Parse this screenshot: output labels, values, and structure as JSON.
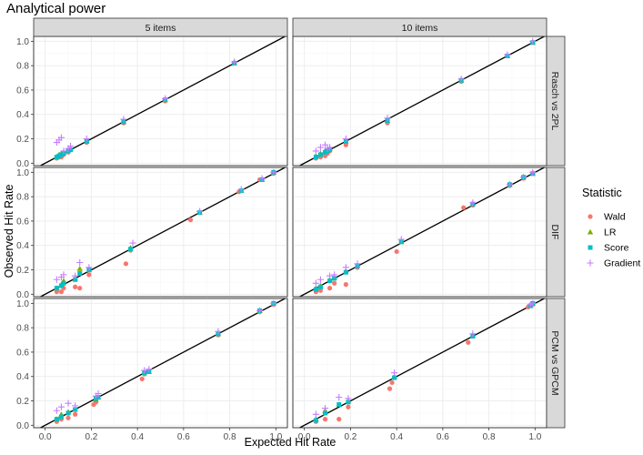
{
  "chart_data": {
    "type": "scatter",
    "title": "Analytical power",
    "xlabel": "Expected Hit Rate",
    "ylabel": "Observed Hit Rate",
    "xlim": [
      -0.05,
      1.05
    ],
    "ylim": [
      -0.02,
      1.04
    ],
    "x_ticks": [
      "0.0",
      "0.2",
      "0.4",
      "0.6",
      "0.8",
      "1.0"
    ],
    "y_ticks": [
      "0.0",
      "0.2",
      "0.4",
      "0.6",
      "0.8",
      "1.0"
    ],
    "grid": true,
    "reference_line": "y = x",
    "legend": {
      "title": "Statistic",
      "position": "right"
    },
    "columns": [
      "5 items",
      "10 items"
    ],
    "rows": [
      "Rasch vs 2PL",
      "DIF",
      "PCM vs GPCM"
    ],
    "series_styles": [
      {
        "name": "Wald",
        "color": "#F8766D",
        "shape": "circle"
      },
      {
        "name": "LR",
        "color": "#7CAE00",
        "shape": "triangle"
      },
      {
        "name": "Score",
        "color": "#00BFC4",
        "shape": "square"
      },
      {
        "name": "Gradient",
        "color": "#C77CFF",
        "shape": "plus"
      }
    ],
    "panels": [
      {
        "col": "5 items",
        "row": "Rasch vs 2PL",
        "series": [
          {
            "name": "Wald",
            "x": [
              0.05,
              0.06,
              0.07,
              0.08,
              0.1,
              0.11,
              0.18,
              0.34,
              0.52,
              0.82
            ],
            "y": [
              0.04,
              0.05,
              0.05,
              0.07,
              0.09,
              0.11,
              0.17,
              0.33,
              0.51,
              0.82
            ]
          },
          {
            "name": "LR",
            "x": [
              0.05,
              0.06,
              0.07,
              0.08,
              0.1,
              0.11,
              0.18,
              0.34,
              0.52,
              0.82
            ],
            "y": [
              0.05,
              0.07,
              0.08,
              0.09,
              0.11,
              0.12,
              0.18,
              0.34,
              0.52,
              0.83
            ]
          },
          {
            "name": "Score",
            "x": [
              0.05,
              0.06,
              0.07,
              0.08,
              0.1,
              0.11,
              0.18,
              0.34,
              0.52,
              0.82
            ],
            "y": [
              0.05,
              0.06,
              0.07,
              0.08,
              0.1,
              0.11,
              0.18,
              0.34,
              0.52,
              0.82
            ]
          },
          {
            "name": "Gradient",
            "x": [
              0.05,
              0.06,
              0.07,
              0.08,
              0.1,
              0.11,
              0.18,
              0.34,
              0.52,
              0.82
            ],
            "y": [
              0.17,
              0.19,
              0.21,
              0.1,
              0.12,
              0.14,
              0.2,
              0.36,
              0.53,
              0.83
            ]
          }
        ]
      },
      {
        "col": "10 items",
        "row": "Rasch vs 2PL",
        "series": [
          {
            "name": "Wald",
            "x": [
              0.05,
              0.07,
              0.09,
              0.1,
              0.11,
              0.18,
              0.36,
              0.68,
              0.88,
              0.99
            ],
            "y": [
              0.04,
              0.05,
              0.06,
              0.08,
              0.1,
              0.15,
              0.33,
              0.67,
              0.88,
              0.99
            ]
          },
          {
            "name": "LR",
            "x": [
              0.05,
              0.07,
              0.09,
              0.1,
              0.11,
              0.18,
              0.36,
              0.68,
              0.88,
              0.99
            ],
            "y": [
              0.06,
              0.08,
              0.1,
              0.11,
              0.12,
              0.18,
              0.35,
              0.68,
              0.88,
              0.99
            ]
          },
          {
            "name": "Score",
            "x": [
              0.05,
              0.07,
              0.09,
              0.1,
              0.11,
              0.18,
              0.36,
              0.68,
              0.88,
              0.99
            ],
            "y": [
              0.05,
              0.07,
              0.09,
              0.1,
              0.11,
              0.18,
              0.35,
              0.68,
              0.88,
              0.99
            ]
          },
          {
            "name": "Gradient",
            "x": [
              0.05,
              0.07,
              0.09,
              0.1,
              0.11,
              0.18,
              0.36,
              0.68,
              0.88,
              0.99
            ],
            "y": [
              0.1,
              0.13,
              0.15,
              0.12,
              0.13,
              0.2,
              0.37,
              0.69,
              0.89,
              1.0
            ]
          }
        ]
      },
      {
        "col": "5 items",
        "row": "DIF",
        "series": [
          {
            "name": "Wald",
            "x": [
              0.05,
              0.07,
              0.08,
              0.13,
              0.15,
              0.19,
              0.35,
              0.37,
              0.63,
              0.84,
              0.93,
              0.99
            ],
            "y": [
              0.02,
              0.02,
              0.05,
              0.06,
              0.05,
              0.16,
              0.25,
              0.36,
              0.61,
              0.84,
              0.94,
              0.99
            ]
          },
          {
            "name": "LR",
            "x": [
              0.05,
              0.07,
              0.08,
              0.13,
              0.15,
              0.19,
              0.37,
              0.67,
              0.85,
              0.94,
              0.99
            ],
            "y": [
              0.05,
              0.08,
              0.11,
              0.13,
              0.21,
              0.2,
              0.38,
              0.67,
              0.85,
              0.94,
              1.0
            ]
          },
          {
            "name": "Score",
            "x": [
              0.05,
              0.07,
              0.08,
              0.13,
              0.15,
              0.19,
              0.37,
              0.67,
              0.85,
              0.94,
              0.99
            ],
            "y": [
              0.05,
              0.07,
              0.09,
              0.12,
              0.17,
              0.2,
              0.37,
              0.67,
              0.85,
              0.94,
              1.0
            ]
          },
          {
            "name": "Gradient",
            "x": [
              0.05,
              0.07,
              0.08,
              0.13,
              0.15,
              0.19,
              0.38,
              0.67,
              0.85,
              0.94,
              0.99
            ],
            "y": [
              0.12,
              0.14,
              0.16,
              0.15,
              0.26,
              0.22,
              0.42,
              0.68,
              0.86,
              0.95,
              1.0
            ]
          }
        ]
      },
      {
        "col": "10 items",
        "row": "DIF",
        "series": [
          {
            "name": "Wald",
            "x": [
              0.05,
              0.07,
              0.11,
              0.13,
              0.18,
              0.23,
              0.4,
              0.69,
              0.73,
              0.89,
              0.95,
              0.99
            ],
            "y": [
              0.02,
              0.03,
              0.05,
              0.09,
              0.08,
              0.22,
              0.35,
              0.71,
              0.73,
              0.89,
              0.95,
              0.99
            ]
          },
          {
            "name": "LR",
            "x": [
              0.05,
              0.07,
              0.11,
              0.13,
              0.18,
              0.23,
              0.42,
              0.73,
              0.89,
              0.95,
              0.99
            ],
            "y": [
              0.05,
              0.07,
              0.12,
              0.14,
              0.19,
              0.24,
              0.43,
              0.74,
              0.9,
              0.96,
              0.99
            ]
          },
          {
            "name": "Score",
            "x": [
              0.05,
              0.07,
              0.11,
              0.13,
              0.18,
              0.23,
              0.42,
              0.73,
              0.89,
              0.95,
              0.99
            ],
            "y": [
              0.04,
              0.06,
              0.11,
              0.13,
              0.18,
              0.23,
              0.43,
              0.74,
              0.9,
              0.96,
              0.99
            ]
          },
          {
            "name": "Gradient",
            "x": [
              0.05,
              0.07,
              0.11,
              0.13,
              0.18,
              0.23,
              0.42,
              0.73,
              0.89,
              0.95,
              0.99
            ],
            "y": [
              0.09,
              0.12,
              0.15,
              0.16,
              0.22,
              0.25,
              0.45,
              0.75,
              0.9,
              0.96,
              1.0
            ]
          }
        ]
      },
      {
        "col": "5 items",
        "row": "PCM vs GPCM",
        "series": [
          {
            "name": "Wald",
            "x": [
              0.05,
              0.07,
              0.1,
              0.13,
              0.21,
              0.22,
              0.42,
              0.43,
              0.75,
              0.93,
              0.99
            ],
            "y": [
              0.03,
              0.05,
              0.06,
              0.09,
              0.17,
              0.19,
              0.38,
              0.42,
              0.74,
              0.93,
              0.99
            ]
          },
          {
            "name": "LR",
            "x": [
              0.05,
              0.07,
              0.1,
              0.13,
              0.22,
              0.23,
              0.43,
              0.45,
              0.75,
              0.93,
              0.99
            ],
            "y": [
              0.05,
              0.09,
              0.11,
              0.13,
              0.21,
              0.23,
              0.43,
              0.44,
              0.75,
              0.94,
              1.0
            ]
          },
          {
            "name": "Score",
            "x": [
              0.05,
              0.07,
              0.1,
              0.13,
              0.22,
              0.23,
              0.43,
              0.45,
              0.75,
              0.93,
              0.99
            ],
            "y": [
              0.05,
              0.07,
              0.1,
              0.13,
              0.22,
              0.23,
              0.43,
              0.44,
              0.75,
              0.94,
              1.0
            ]
          },
          {
            "name": "Gradient",
            "x": [
              0.05,
              0.07,
              0.1,
              0.13,
              0.22,
              0.23,
              0.43,
              0.45,
              0.75,
              0.93,
              0.99
            ],
            "y": [
              0.12,
              0.15,
              0.18,
              0.16,
              0.24,
              0.26,
              0.45,
              0.46,
              0.77,
              0.94,
              1.0
            ]
          }
        ]
      },
      {
        "col": "10 items",
        "row": "PCM vs GPCM",
        "series": [
          {
            "name": "Wald",
            "x": [
              0.05,
              0.09,
              0.15,
              0.19,
              0.37,
              0.38,
              0.71,
              0.97,
              0.99
            ],
            "y": [
              0.03,
              0.05,
              0.05,
              0.15,
              0.3,
              0.35,
              0.68,
              0.97,
              0.99
            ]
          },
          {
            "name": "LR",
            "x": [
              0.05,
              0.09,
              0.15,
              0.19,
              0.39,
              0.73,
              0.98,
              0.99
            ],
            "y": [
              0.05,
              0.12,
              0.17,
              0.2,
              0.4,
              0.74,
              0.98,
              1.0
            ]
          },
          {
            "name": "Score",
            "x": [
              0.05,
              0.09,
              0.15,
              0.19,
              0.39,
              0.73,
              0.98,
              0.99
            ],
            "y": [
              0.04,
              0.1,
              0.17,
              0.19,
              0.39,
              0.73,
              0.98,
              1.0
            ]
          },
          {
            "name": "Gradient",
            "x": [
              0.05,
              0.09,
              0.15,
              0.19,
              0.39,
              0.73,
              0.98,
              0.99
            ],
            "y": [
              0.09,
              0.14,
              0.23,
              0.22,
              0.43,
              0.75,
              0.99,
              1.0
            ]
          }
        ]
      }
    ]
  }
}
